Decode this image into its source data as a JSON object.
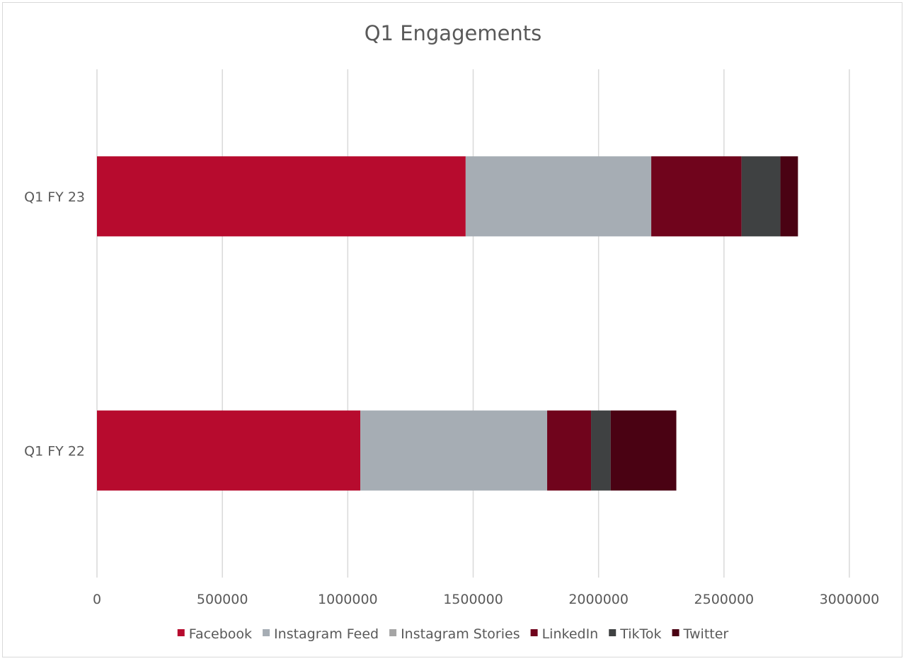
{
  "chart_data": {
    "type": "bar",
    "orientation": "horizontal",
    "stacked": true,
    "title": "Q1 Engagements",
    "xlabel": "",
    "ylabel": "",
    "categories": [
      "Q1 FY 23",
      "Q1 FY 22"
    ],
    "xlim": [
      0,
      3000000
    ],
    "x_ticks": [
      "0",
      "500000",
      "1000000",
      "1500000",
      "2000000",
      "2500000",
      "3000000"
    ],
    "grid": true,
    "legend_position": "bottom",
    "series": [
      {
        "name": "Facebook",
        "color": "#b70b2e",
        "values": [
          1470000,
          1050000
        ]
      },
      {
        "name": "Instagram Feed",
        "color": "#a6adb4",
        "values": [
          740000,
          745000
        ]
      },
      {
        "name": "Instagram Stories",
        "color": "#a5a5a5",
        "values": [
          0,
          0
        ]
      },
      {
        "name": "LinkedIn",
        "color": "#70041c",
        "values": [
          360000,
          175000
        ]
      },
      {
        "name": "TikTok",
        "color": "#3f4142",
        "values": [
          155000,
          78000
        ]
      },
      {
        "name": "Twitter",
        "color": "#4a0213",
        "values": [
          70000,
          262000
        ]
      }
    ]
  }
}
